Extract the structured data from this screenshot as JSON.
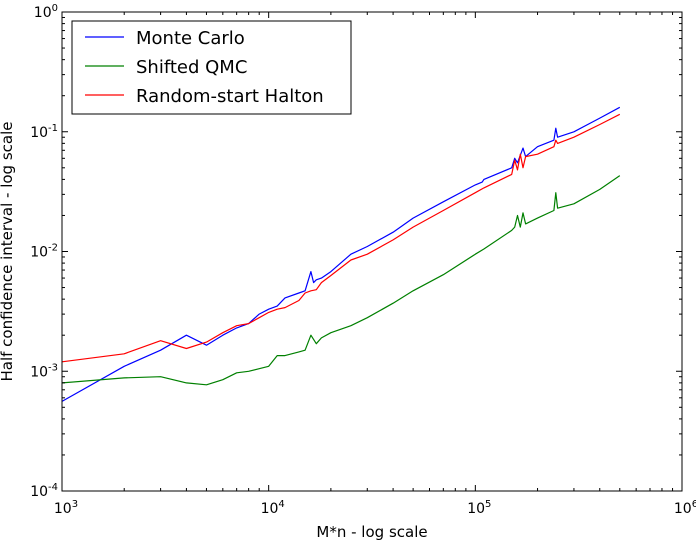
{
  "chart_data": {
    "type": "line",
    "title": "",
    "xlabel": "M*n - log scale",
    "ylabel": "Half confidence interval - log scale",
    "xscale": "log",
    "yscale": "log",
    "xlim": [
      1000,
      1000000
    ],
    "ylim": [
      0.0001,
      1
    ],
    "grid": false,
    "legend_position": "top-left",
    "x_ticks": [
      {
        "base": "10",
        "exp": "3",
        "value": 1000
      },
      {
        "base": "10",
        "exp": "4",
        "value": 10000
      },
      {
        "base": "10",
        "exp": "5",
        "value": 100000
      },
      {
        "base": "10",
        "exp": "6",
        "value": 1000000
      }
    ],
    "y_ticks": [
      {
        "base": "10",
        "exp": "-4",
        "value": 0.0001
      },
      {
        "base": "10",
        "exp": "-3",
        "value": 0.001
      },
      {
        "base": "10",
        "exp": "-2",
        "value": 0.01
      },
      {
        "base": "10",
        "exp": "-1",
        "value": 0.1
      },
      {
        "base": "10",
        "exp": "0",
        "value": 1
      }
    ],
    "series": [
      {
        "name": "Monte Carlo",
        "color": "#0000ff",
        "x": [
          1000,
          2000,
          3000,
          4000,
          5000,
          6000,
          7000,
          8000,
          9000,
          10000,
          11000,
          12000,
          14000,
          15000,
          16000,
          16500,
          17000,
          18000,
          20000,
          25000,
          30000,
          40000,
          50000,
          70000,
          100000,
          108000,
          110000,
          150000,
          155000,
          160000,
          170000,
          175000,
          200000,
          240000,
          245000,
          250000,
          300000,
          400000,
          500000
        ],
        "y": [
          0.00056,
          0.0011,
          0.0015,
          0.002,
          0.00165,
          0.002,
          0.0023,
          0.0025,
          0.003,
          0.0033,
          0.0035,
          0.0041,
          0.0045,
          0.0047,
          0.0068,
          0.0055,
          0.0058,
          0.006,
          0.0068,
          0.0095,
          0.011,
          0.0145,
          0.019,
          0.026,
          0.036,
          0.038,
          0.04,
          0.05,
          0.06,
          0.055,
          0.073,
          0.062,
          0.075,
          0.085,
          0.107,
          0.09,
          0.1,
          0.13,
          0.16
        ]
      },
      {
        "name": "Shifted QMC",
        "color": "#008000",
        "x": [
          1000,
          2000,
          3000,
          4000,
          5000,
          6000,
          7000,
          8000,
          9000,
          10000,
          11000,
          12000,
          14000,
          15000,
          16000,
          17000,
          18000,
          20000,
          25000,
          30000,
          40000,
          50000,
          70000,
          100000,
          110000,
          150000,
          155000,
          160000,
          165000,
          170000,
          175000,
          200000,
          240000,
          245000,
          250000,
          300000,
          400000,
          500000
        ],
        "y": [
          0.0008,
          0.00088,
          0.0009,
          0.0008,
          0.00077,
          0.00085,
          0.00097,
          0.001,
          0.00105,
          0.0011,
          0.00135,
          0.00135,
          0.00145,
          0.0015,
          0.002,
          0.0017,
          0.0019,
          0.0021,
          0.0024,
          0.0028,
          0.0037,
          0.0047,
          0.0064,
          0.0095,
          0.0105,
          0.015,
          0.016,
          0.02,
          0.016,
          0.021,
          0.017,
          0.019,
          0.022,
          0.031,
          0.023,
          0.025,
          0.033,
          0.043
        ]
      },
      {
        "name": "Random-start Halton",
        "color": "#ff0000",
        "x": [
          1000,
          2000,
          3000,
          4000,
          5000,
          6000,
          7000,
          8000,
          9000,
          10000,
          11000,
          12000,
          14000,
          15000,
          16000,
          17000,
          18000,
          20000,
          25000,
          30000,
          40000,
          50000,
          70000,
          100000,
          110000,
          150000,
          155000,
          160000,
          165000,
          170000,
          175000,
          200000,
          240000,
          245000,
          250000,
          300000,
          400000,
          500000
        ],
        "y": [
          0.0012,
          0.0014,
          0.0018,
          0.00155,
          0.00175,
          0.0021,
          0.0024,
          0.0025,
          0.0028,
          0.0031,
          0.0033,
          0.0034,
          0.0039,
          0.0045,
          0.0047,
          0.0048,
          0.0055,
          0.0063,
          0.0085,
          0.0095,
          0.0125,
          0.016,
          0.022,
          0.031,
          0.034,
          0.044,
          0.058,
          0.048,
          0.065,
          0.05,
          0.062,
          0.065,
          0.075,
          0.085,
          0.08,
          0.09,
          0.115,
          0.14
        ]
      }
    ]
  }
}
